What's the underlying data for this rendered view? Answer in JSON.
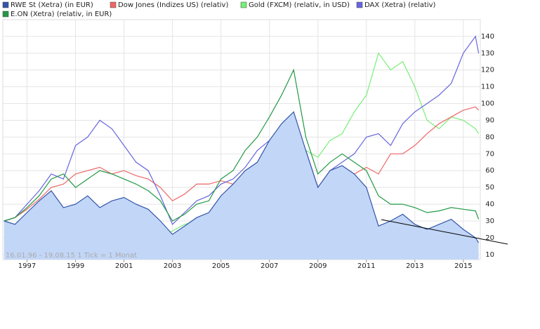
{
  "chart_data": {
    "type": "line",
    "info": "16.01.96 - 19.08.15  1 Tick = 1 Monat",
    "x": [
      1996.05,
      1996.5,
      1997,
      1997.5,
      1998,
      1998.5,
      1999,
      1999.5,
      2000,
      2000.5,
      2001,
      2001.5,
      2002,
      2002.5,
      2003,
      2003.5,
      2004,
      2004.5,
      2005,
      2005.5,
      2006,
      2006.5,
      2007,
      2007.5,
      2008,
      2008.5,
      2009,
      2009.5,
      2010,
      2010.5,
      2011,
      2011.5,
      2012,
      2012.5,
      2013,
      2013.5,
      2014,
      2014.5,
      2015,
      2015.5,
      2015.63
    ],
    "series": [
      {
        "name": "RWE St (Xetra) (in EUR)",
        "color": "#3355aa",
        "area": true,
        "values": [
          30,
          28,
          35,
          42,
          48,
          38,
          40,
          45,
          38,
          42,
          44,
          40,
          37,
          30,
          22,
          27,
          32,
          35,
          45,
          52,
          60,
          65,
          78,
          88,
          95,
          72,
          50,
          60,
          63,
          58,
          50,
          27,
          30,
          34,
          28,
          25,
          28,
          31,
          25,
          20,
          17
        ]
      },
      {
        "name": "Dow Jones (Indizes US) (relativ)",
        "color": "#ee6666",
        "values": [
          30,
          32,
          37,
          43,
          50,
          52,
          58,
          60,
          62,
          58,
          60,
          57,
          55,
          50,
          42,
          46,
          52,
          52,
          54,
          52,
          56,
          56,
          60,
          68,
          75,
          60,
          42,
          52,
          55,
          58,
          62,
          58,
          70,
          70,
          75,
          82,
          88,
          92,
          96,
          98,
          96
        ]
      },
      {
        "name": "Gold (FXCM) (relativ, in USD)",
        "color": "#77ee77",
        "values": [
          30,
          28,
          26,
          24,
          22,
          22,
          21,
          21,
          20,
          21,
          20,
          20,
          22,
          22,
          24,
          28,
          30,
          30,
          30,
          32,
          40,
          45,
          48,
          55,
          70,
          72,
          68,
          78,
          82,
          95,
          105,
          130,
          120,
          125,
          110,
          90,
          85,
          92,
          90,
          85,
          82
        ]
      },
      {
        "name": "DAX (Xetra) (relativ)",
        "color": "#6666dd",
        "values": [
          30,
          32,
          40,
          48,
          58,
          55,
          75,
          80,
          90,
          85,
          75,
          65,
          60,
          45,
          28,
          35,
          42,
          45,
          52,
          55,
          62,
          72,
          78,
          85,
          90,
          72,
          50,
          60,
          65,
          70,
          80,
          82,
          75,
          88,
          95,
          100,
          105,
          112,
          130,
          140,
          130
        ]
      },
      {
        "name": "E.ON (Xetra) (relativ, in EUR)",
        "color": "#229944",
        "values": [
          30,
          32,
          38,
          45,
          55,
          58,
          50,
          55,
          60,
          58,
          55,
          52,
          48,
          42,
          30,
          34,
          40,
          42,
          55,
          60,
          72,
          80,
          92,
          105,
          120,
          80,
          58,
          65,
          70,
          65,
          60,
          45,
          40,
          40,
          38,
          35,
          36,
          38,
          37,
          36,
          31
        ]
      }
    ],
    "xlim": [
      1996,
      2015.7
    ],
    "xticks": [
      1997,
      1999,
      2001,
      2003,
      2005,
      2007,
      2009,
      2011,
      2013,
      2015
    ],
    "ylim": [
      7,
      150
    ],
    "yticks": [
      10,
      20,
      30,
      40,
      50,
      60,
      70,
      80,
      90,
      100,
      110,
      120,
      130,
      140
    ],
    "grid": true
  }
}
